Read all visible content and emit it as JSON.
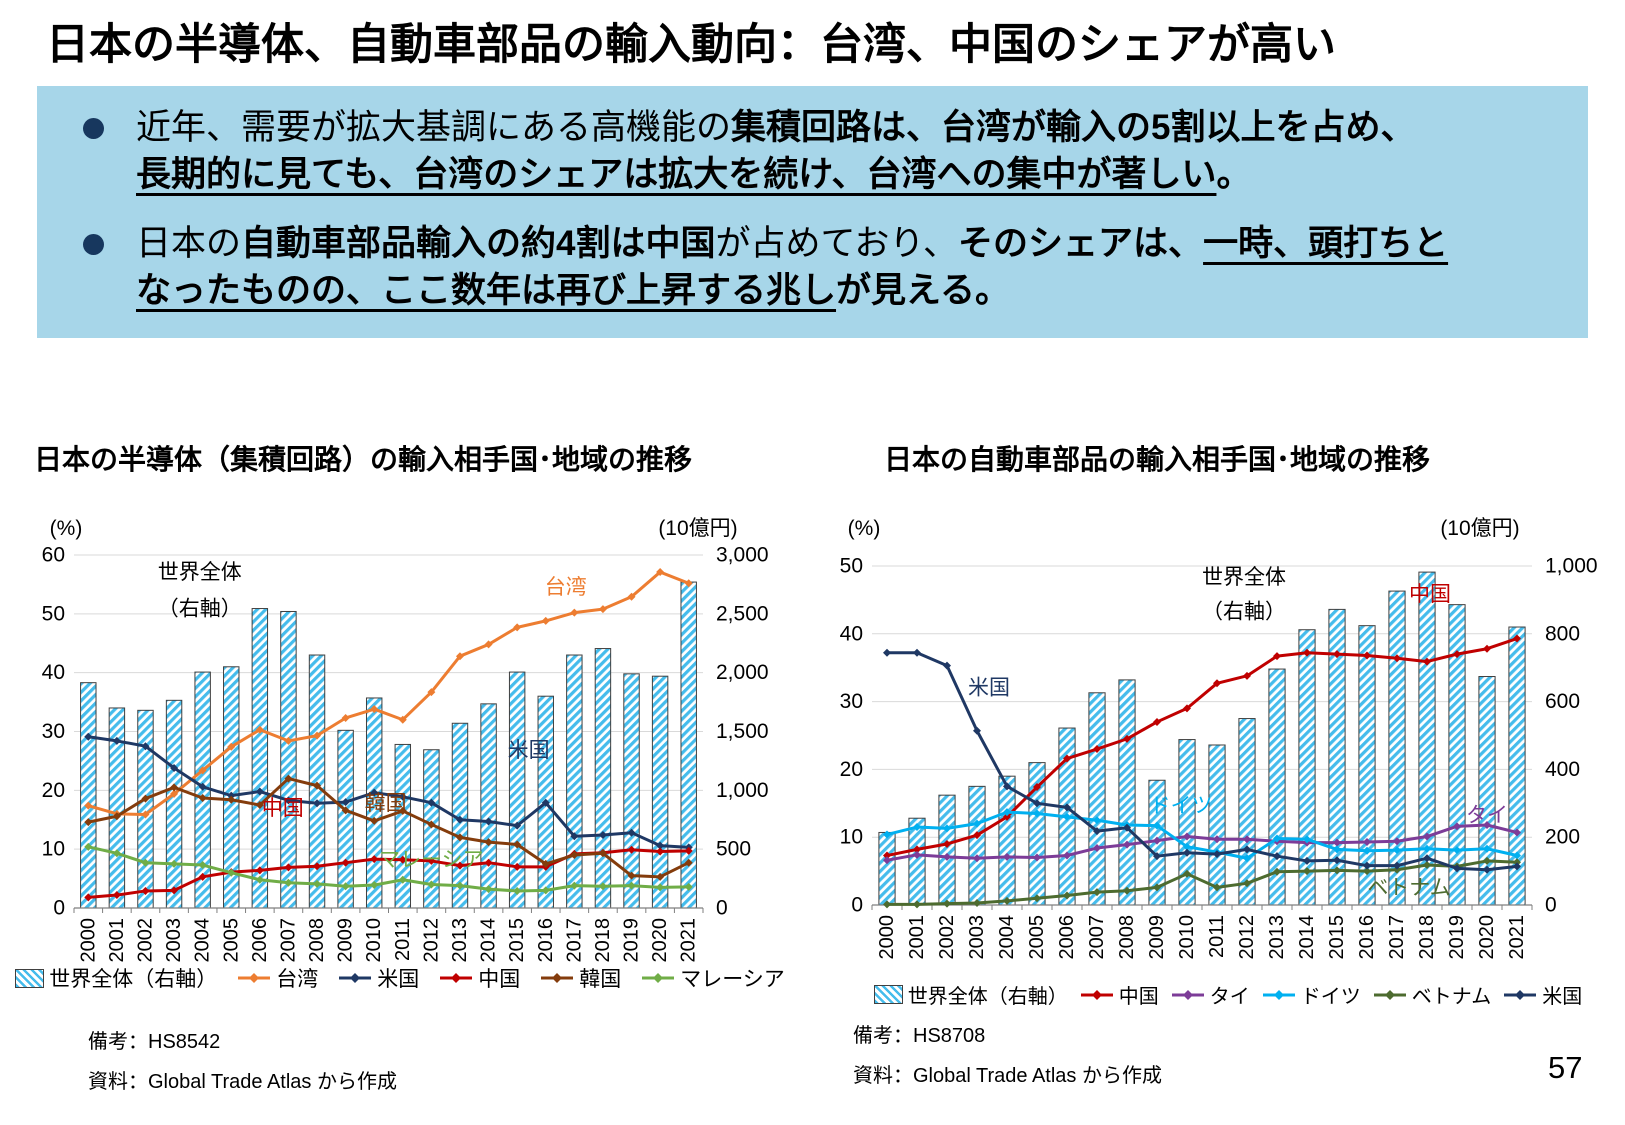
{
  "page": {
    "title": "日本の半導体、自動車部品の輸入動向：台湾、中国のシェアが高い",
    "page_number": "57",
    "box_bg": "#A7D6E9",
    "bullet_dot_color": "#17375E"
  },
  "bullets": [
    {
      "lines": [
        [
          {
            "t": "近年、需要が拡大基調にある高機能の",
            "b": false,
            "u": false
          },
          {
            "t": "集積回路は、台湾が輸入の5割以上を占め、",
            "b": true,
            "u": false
          }
        ],
        [
          {
            "t": "長期的に見ても、台湾のシェアは拡大を続け、台湾への集中が著しい",
            "b": true,
            "u": true
          },
          {
            "t": "。",
            "b": true,
            "u": false
          }
        ]
      ]
    },
    {
      "lines": [
        [
          {
            "t": "日本の",
            "b": false,
            "u": false
          },
          {
            "t": "自動車部品輸入の約4割は中国",
            "b": true,
            "u": false
          },
          {
            "t": "が占めており、",
            "b": false,
            "u": false
          },
          {
            "t": "そのシェアは、",
            "b": true,
            "u": false
          },
          {
            "t": "一時、頭打ちと",
            "b": true,
            "u": true
          }
        ],
        [
          {
            "t": "なったものの、ここ数年は再び上昇する兆し",
            "b": true,
            "u": true
          },
          {
            "t": "が見える。",
            "b": true,
            "u": false
          }
        ]
      ]
    }
  ],
  "chart_data": [
    {
      "type": "bar+line combo, bars on right axis",
      "title": "日本の半導体（集積回路）の輸入相手国･地域の推移",
      "left_axis": {
        "label": "(%)",
        "max": 60,
        "ticks": [
          "0",
          "10",
          "20",
          "30",
          "40",
          "50",
          "60"
        ]
      },
      "right_axis": {
        "label": "(10億円)",
        "max": 3000,
        "ticks": [
          "0",
          "500",
          "1,000",
          "1,500",
          "2,000",
          "2,500",
          "3,000"
        ]
      },
      "categories": [
        "2000",
        "2001",
        "2002",
        "2003",
        "2004",
        "2005",
        "2006",
        "2007",
        "2008",
        "2009",
        "2010",
        "2011",
        "2012",
        "2013",
        "2014",
        "2015",
        "2016",
        "2017",
        "2018",
        "2019",
        "2020",
        "2021"
      ],
      "bar_series": {
        "name": "世界全体（右軸）",
        "axis": "right",
        "color": "#45BCEC",
        "values": [
          1915,
          1700,
          1680,
          1765,
          2005,
          2050,
          2545,
          2520,
          2150,
          1510,
          1785,
          1390,
          1345,
          1570,
          1735,
          2005,
          1800,
          2150,
          2205,
          1990,
          1970,
          2770
        ]
      },
      "line_series": [
        {
          "name": "台湾",
          "color": "#ED7D31",
          "values": [
            17.4,
            16.0,
            15.9,
            19.4,
            23.4,
            27.4,
            30.3,
            28.4,
            29.3,
            32.3,
            33.8,
            32.0,
            36.7,
            42.8,
            44.8,
            47.7,
            48.8,
            50.2,
            50.8,
            52.9,
            57.1,
            55.2
          ]
        },
        {
          "name": "米国",
          "color": "#1F3864",
          "values": [
            29.1,
            28.4,
            27.5,
            23.8,
            20.6,
            19.1,
            19.8,
            18.3,
            17.8,
            18.0,
            19.6,
            18.9,
            17.9,
            15.0,
            14.7,
            14.0,
            17.9,
            12.2,
            12.4,
            12.8,
            10.6,
            10.3
          ]
        },
        {
          "name": "中国",
          "color": "#C00000",
          "values": [
            1.8,
            2.2,
            2.9,
            3.0,
            5.3,
            6.1,
            6.4,
            6.9,
            7.1,
            7.7,
            8.3,
            8.2,
            8.0,
            7.2,
            7.7,
            7.0,
            7.0,
            9.2,
            9.4,
            9.9,
            9.6,
            9.7
          ]
        },
        {
          "name": "韓国",
          "color": "#843C0C",
          "values": [
            14.6,
            15.6,
            18.6,
            20.5,
            18.7,
            18.4,
            17.5,
            22.0,
            20.8,
            16.6,
            14.8,
            16.5,
            14.2,
            12.0,
            11.2,
            10.8,
            7.5,
            9.0,
            9.3,
            5.5,
            5.3,
            7.7
          ]
        },
        {
          "name": "マレーシア",
          "color": "#70AD47",
          "values": [
            10.4,
            9.3,
            7.7,
            7.5,
            7.3,
            6.0,
            4.8,
            4.3,
            4.1,
            3.7,
            3.9,
            4.8,
            4.0,
            3.8,
            3.2,
            2.9,
            3.0,
            3.8,
            3.7,
            3.8,
            3.5,
            3.6
          ]
        }
      ],
      "plot_labels": [
        {
          "text": "世界全体",
          "color": "#000000",
          "x": 4.4,
          "y": 57.0
        },
        {
          "text": "（右軸）",
          "color": "#000000",
          "x": 4.4,
          "y": 50.8
        },
        {
          "text": "台湾",
          "color": "#ED7D31",
          "x": 17.2,
          "y": 54.5
        },
        {
          "text": "米国",
          "color": "#1F3864",
          "x": 15.9,
          "y": 26.8
        },
        {
          "text": "中国",
          "color": "#C00000",
          "x": 7.3,
          "y": 16.9
        },
        {
          "text": "韓国",
          "color": "#843C0C",
          "x": 10.9,
          "y": 17.8
        },
        {
          "text": "マレーシア",
          "color": "#70AD47",
          "x": 12.5,
          "y": 8.2
        }
      ],
      "legend": [
        {
          "type": "bar",
          "label": "世界全体（右軸）",
          "color": "#45BCEC"
        },
        {
          "type": "line",
          "label": "台湾",
          "color": "#ED7D31"
        },
        {
          "type": "line",
          "label": "米国",
          "color": "#1F3864"
        },
        {
          "type": "line",
          "label": "中国",
          "color": "#C00000"
        },
        {
          "type": "line",
          "label": "韓国",
          "color": "#843C0C"
        },
        {
          "type": "line",
          "label": "マレーシア",
          "color": "#70AD47"
        }
      ],
      "notes": [
        "備考：HS8542",
        "資料：Global Trade Atlas から作成"
      ]
    },
    {
      "type": "bar+line combo, bars on right axis",
      "title": "日本の自動車部品の輸入相手国･地域の推移",
      "left_axis": {
        "label": "(%)",
        "max": 50,
        "ticks": [
          "0",
          "10",
          "20",
          "30",
          "40",
          "50"
        ]
      },
      "right_axis": {
        "label": "(10億円)",
        "max": 1000,
        "ticks": [
          "0",
          "200",
          "400",
          "600",
          "800",
          "1,000"
        ]
      },
      "categories": [
        "2000",
        "2001",
        "2002",
        "2003",
        "2004",
        "2005",
        "2006",
        "2007",
        "2008",
        "2009",
        "2010",
        "2011",
        "2012",
        "2013",
        "2014",
        "2015",
        "2016",
        "2017",
        "2018",
        "2019",
        "2020",
        "2021"
      ],
      "bar_series": {
        "name": "世界全体（右軸）",
        "axis": "right",
        "color": "#45BCEC",
        "values": [
          214,
          256,
          324,
          350,
          380,
          420,
          522,
          626,
          664,
          368,
          488,
          472,
          550,
          696,
          812,
          872,
          824,
          926,
          982,
          886,
          674,
          820
        ]
      },
      "line_series": [
        {
          "name": "中国",
          "color": "#C00000",
          "values": [
            7.3,
            8.2,
            9.0,
            10.3,
            13.0,
            17.4,
            21.6,
            23.0,
            24.5,
            27.0,
            29.0,
            32.7,
            33.8,
            36.7,
            37.2,
            37.0,
            36.8,
            36.4,
            35.9,
            37.0,
            37.8,
            39.3
          ]
        },
        {
          "name": "タイ",
          "color": "#7D3C98",
          "values": [
            6.6,
            7.4,
            7.1,
            6.9,
            7.1,
            7.0,
            7.3,
            8.4,
            8.9,
            9.5,
            10.1,
            9.7,
            9.7,
            9.4,
            9.2,
            9.2,
            9.3,
            9.4,
            10.1,
            11.6,
            11.8,
            10.7
          ]
        },
        {
          "name": "ドイツ",
          "color": "#00B0F0",
          "values": [
            10.4,
            11.5,
            11.3,
            12.0,
            13.7,
            13.5,
            13.0,
            12.5,
            11.8,
            11.7,
            8.6,
            7.8,
            6.9,
            9.8,
            9.7,
            8.2,
            8.0,
            8.1,
            8.3,
            8.1,
            8.3,
            7.3
          ]
        },
        {
          "name": "ベトナム",
          "color": "#4D6B2F",
          "values": [
            0.1,
            0.1,
            0.2,
            0.3,
            0.6,
            1.0,
            1.4,
            1.9,
            2.1,
            2.6,
            4.6,
            2.6,
            3.2,
            4.9,
            5.0,
            5.1,
            5.0,
            5.2,
            5.9,
            5.7,
            6.5,
            6.3
          ]
        },
        {
          "name": "米国",
          "color": "#1F3864",
          "values": [
            37.2,
            37.2,
            35.3,
            25.7,
            17.5,
            15.0,
            14.4,
            10.9,
            11.4,
            7.2,
            7.7,
            7.5,
            8.2,
            7.2,
            6.5,
            6.6,
            5.8,
            5.8,
            6.9,
            5.4,
            5.2,
            5.7
          ]
        }
      ],
      "plot_labels": [
        {
          "text": "世界全体",
          "color": "#000000",
          "x": 12.4,
          "y": 48.3
        },
        {
          "text": "（右軸）",
          "color": "#000000",
          "x": 12.4,
          "y": 43.2
        },
        {
          "text": "中国",
          "color": "#C00000",
          "x": 18.6,
          "y": 45.8
        },
        {
          "text": "米国",
          "color": "#1F3864",
          "x": 3.9,
          "y": 32.0
        },
        {
          "text": "ドイツ",
          "color": "#00B0F0",
          "x": 10.3,
          "y": 14.6
        },
        {
          "text": "タイ",
          "color": "#7D3C98",
          "x": 20.5,
          "y": 13.2
        },
        {
          "text": "ベトナム",
          "color": "#4D6B2F",
          "x": 17.9,
          "y": 2.5
        }
      ],
      "legend": [
        {
          "type": "bar",
          "label": "世界全体（右軸）",
          "color": "#45BCEC"
        },
        {
          "type": "line",
          "label": "中国",
          "color": "#C00000"
        },
        {
          "type": "line",
          "label": "タイ",
          "color": "#7D3C98"
        },
        {
          "type": "line",
          "label": "ドイツ",
          "color": "#00B0F0"
        },
        {
          "type": "line",
          "label": "ベトナム",
          "color": "#4D6B2F"
        },
        {
          "type": "line",
          "label": "米国",
          "color": "#1F3864"
        }
      ],
      "notes": [
        "備考：HS8708",
        "資料：Global Trade Atlas から作成"
      ]
    }
  ]
}
